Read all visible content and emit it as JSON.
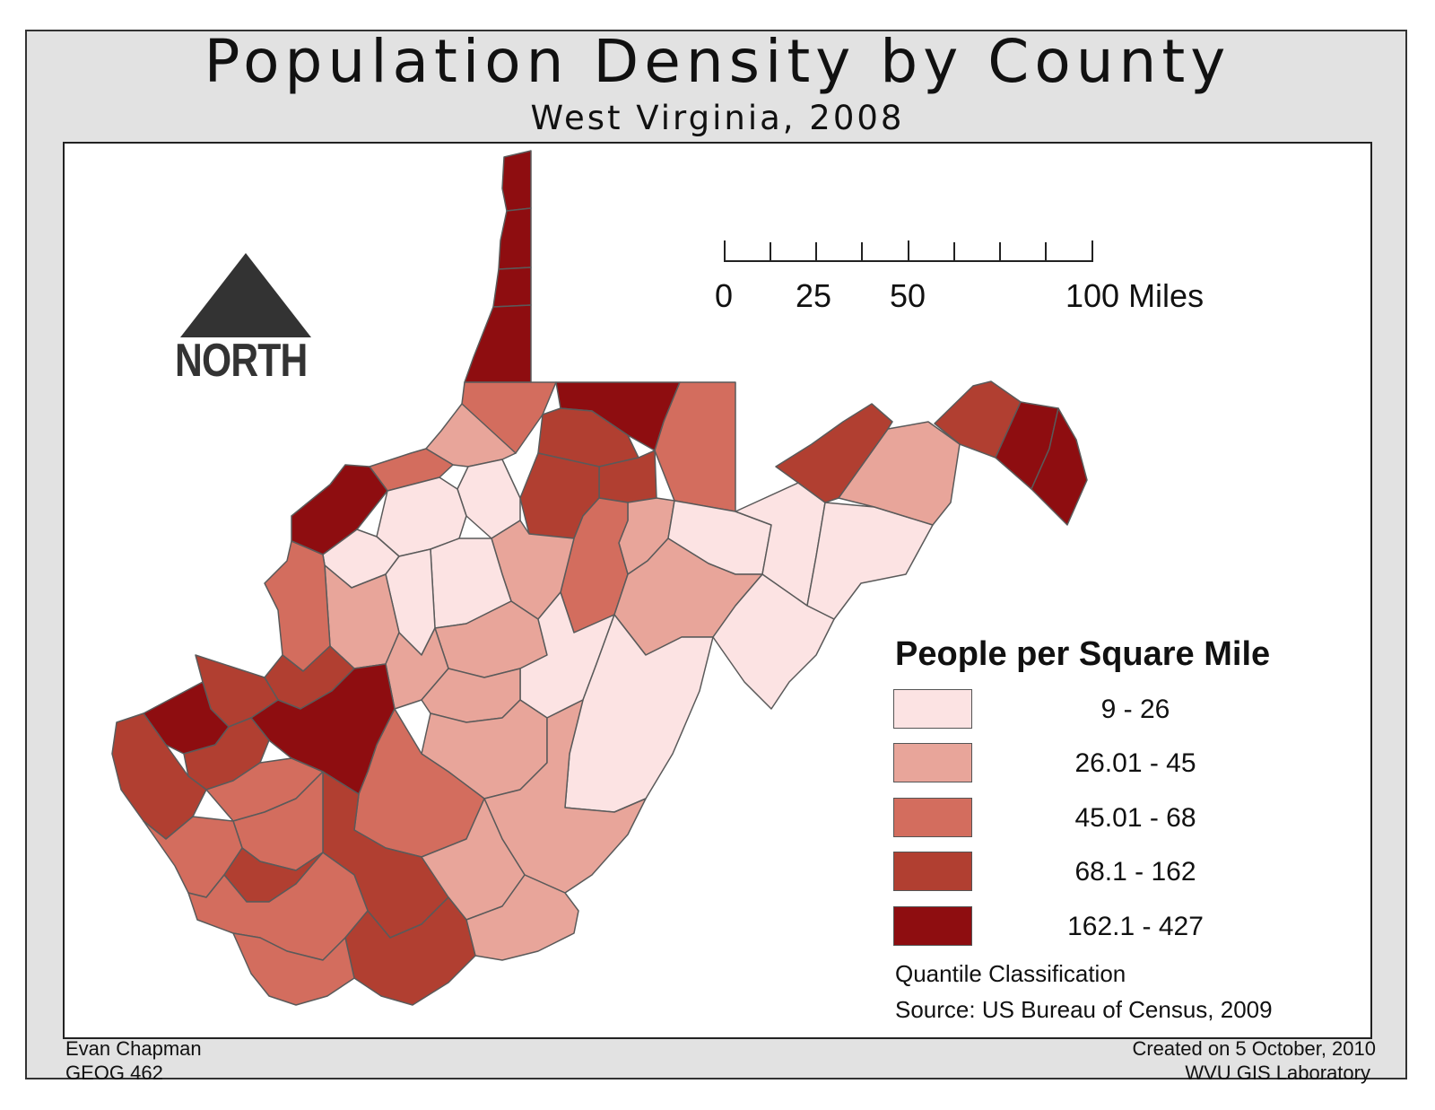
{
  "map": {
    "title": "Population Density by County",
    "subtitle": "West Virginia, 2008",
    "north_label": "NORTH",
    "scale_bar": {
      "labels": [
        "0",
        "25",
        "50",
        "100 Miles"
      ]
    },
    "legend": {
      "title": "People per Square Mile",
      "classes": [
        {
          "label": "9 - 26",
          "color": "#fce3e3"
        },
        {
          "label": "26.01 - 45",
          "color": "#e8a59a"
        },
        {
          "label": "45.01 - 68",
          "color": "#d36d5e"
        },
        {
          "label": "68.1 - 162",
          "color": "#b13f31"
        },
        {
          "label": "162.1 - 427",
          "color": "#8e0d10"
        }
      ],
      "classification": "Quantile Classification",
      "source": "Source: US Bureau of Census, 2009"
    },
    "footer": {
      "author": "Evan Chapman",
      "course": "GEOG 462",
      "created": "Created on 5 October, 2010",
      "lab": "WVU GIS Laboratory"
    },
    "colors": {
      "class1": "#fce3e3",
      "class2": "#e8a59a",
      "class3": "#d36d5e",
      "class4": "#b13f31",
      "class5": "#8e0d10",
      "county_border": "#5a5a5a",
      "north_arrow": "#333333"
    }
  }
}
